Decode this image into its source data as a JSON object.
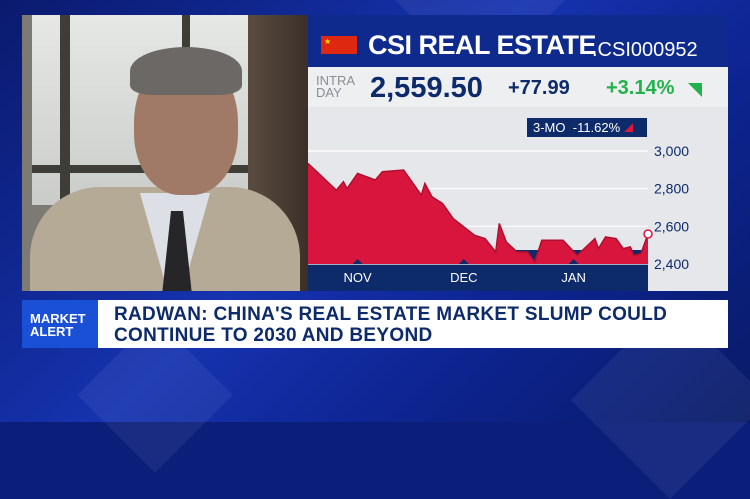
{
  "chart": {
    "flag_icon": "china-flag-icon",
    "title": "CSI REAL ESTATE",
    "ticker": ".CSI000952",
    "intraday_label": "INTRA DAY",
    "price": "2,559.50",
    "change": "+77.99",
    "change_pct": "+3.14%",
    "range_label": "3-MO",
    "range_change": "-11.62%",
    "colors": {
      "area": "#d8163d",
      "positive": "#21b24b",
      "navy": "#0d2a6b"
    }
  },
  "chart_data": {
    "type": "area",
    "y_ticks": [
      "3,000",
      "2,800",
      "2,600",
      "2,400"
    ],
    "ylim": [
      2400,
      3000
    ],
    "x_ticks": [
      {
        "label": "NOV",
        "date": "11-01"
      },
      {
        "label": "DEC",
        "date": "12-01"
      },
      {
        "label": "JAN",
        "date": "01-01"
      }
    ],
    "grid": true,
    "points": [
      [
        "10-18",
        2934
      ],
      [
        "10-22",
        2863
      ],
      [
        "10-26",
        2792
      ],
      [
        "10-28",
        2837
      ],
      [
        "10-29",
        2801
      ],
      [
        "11-01",
        2881
      ],
      [
        "11-06",
        2846
      ],
      [
        "11-08",
        2890
      ],
      [
        "11-14",
        2899
      ],
      [
        "11-19",
        2766
      ],
      [
        "11-20",
        2828
      ],
      [
        "11-22",
        2757
      ],
      [
        "11-25",
        2721
      ],
      [
        "11-28",
        2641
      ],
      [
        "12-04",
        2553
      ],
      [
        "12-07",
        2535
      ],
      [
        "12-10",
        2464
      ],
      [
        "12-11",
        2615
      ],
      [
        "12-13",
        2517
      ],
      [
        "12-16",
        2464
      ],
      [
        "12-19",
        2464
      ],
      [
        "12-21",
        2411
      ],
      [
        "12-23",
        2526
      ],
      [
        "12-29",
        2526
      ],
      [
        "01-02",
        2446
      ],
      [
        "01-07",
        2535
      ],
      [
        "01-08",
        2482
      ],
      [
        "01-10",
        2544
      ],
      [
        "01-13",
        2535
      ],
      [
        "01-15",
        2482
      ],
      [
        "01-17",
        2491
      ],
      [
        "01-18",
        2446
      ],
      [
        "01-20",
        2455
      ],
      [
        "01-22",
        2559.5
      ]
    ]
  },
  "lower_third": {
    "label_line1": "MARKET",
    "label_line2": "ALERT",
    "headline_line1": "RADWAN: CHINA'S REAL ESTATE MARKET SLUMP COULD",
    "headline_line2": "CONTINUE TO 2030 AND BEYOND"
  }
}
